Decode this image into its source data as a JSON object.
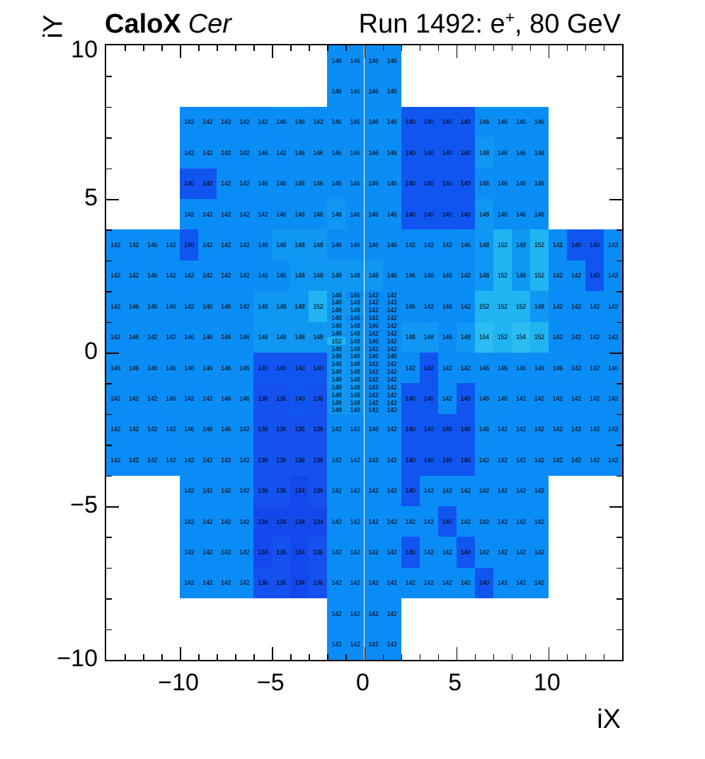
{
  "header": {
    "left_bold": "CaloX",
    "left_italic": "Cer",
    "right_prefix": "Run 1492: e",
    "right_sup": "+",
    "right_suffix": ", 80 GeV"
  },
  "chart_data": {
    "type": "heatmap",
    "title": "CaloX Cer — Run 1492: e+, 80 GeV",
    "xlabel": "iX",
    "ylabel": "iY",
    "x_range": [
      -14,
      14
    ],
    "y_range": [
      -10,
      10
    ],
    "x_ticks": [
      -10,
      -5,
      0,
      5,
      10
    ],
    "x_tick_labels": [
      "−10",
      "−5",
      "0",
      "5",
      "10"
    ],
    "y_ticks": [
      10,
      5,
      0,
      -5,
      -10
    ],
    "y_tick_labels": [
      "10",
      "5",
      "0",
      "−5",
      "−10"
    ],
    "grid": false,
    "z_min": 134,
    "z_max": 154,
    "color_map": {
      "134": "#1349ec",
      "136": "#1451ef",
      "140": "#1155f1",
      "142": "#0a8cf7",
      "146": "#0a8ef5",
      "148": "#0f97f3",
      "152": "#20b4f3",
      "154": "#2cbcf2"
    },
    "coarse_rows": [
      {
        "iy": 9,
        "segments": [
          {
            "x0": -2,
            "values": [
              146,
              146,
              146,
              146
            ]
          }
        ]
      },
      {
        "iy": 8,
        "segments": [
          {
            "x0": -2,
            "values": [
              146,
              146,
              146,
              146
            ]
          }
        ]
      },
      {
        "iy": 7,
        "segments": [
          {
            "x0": -10,
            "values": [
              142,
              142,
              142,
              142,
              142,
              146,
              146,
              142,
              146,
              146,
              146,
              146,
              140,
              140,
              140,
              140,
              146,
              146,
              146,
              146
            ]
          }
        ]
      },
      {
        "iy": 6,
        "segments": [
          {
            "x0": -10,
            "values": [
              142,
              142,
              142,
              142,
              146,
              142,
              146,
              146,
              146,
              146,
              146,
              146,
              140,
              140,
              140,
              140,
              148,
              146,
              146,
              146
            ]
          }
        ]
      },
      {
        "iy": 5,
        "segments": [
          {
            "x0": -10,
            "values": [
              140,
              140,
              142,
              142,
              146,
              146,
              146,
              146,
              146,
              146,
              146,
              146,
              140,
              140,
              140,
              140,
              146,
              146,
              146,
              146
            ]
          }
        ]
      },
      {
        "iy": 4,
        "segments": [
          {
            "x0": -10,
            "values": [
              142,
              142,
              142,
              142,
              142,
              146,
              146,
              146,
              148,
              146,
              146,
              146,
              140,
              140,
              140,
              140,
              148,
              146,
              146,
              146
            ]
          }
        ]
      },
      {
        "iy": 3,
        "segments": [
          {
            "x0": -14,
            "values": [
              142,
              142,
              146,
              142,
              140,
              142,
              142,
              142,
              146,
              148,
              148,
              148,
              146,
              146,
              146,
              146,
              142,
              142,
              142,
              146,
              148,
              152,
              148,
              152,
              142,
              140,
              140,
              142
            ]
          }
        ]
      },
      {
        "iy": 2,
        "segments": [
          {
            "x0": -14,
            "values": [
              142,
              142,
              146,
              142,
              142,
              142,
              142,
              142,
              146,
              146,
              148,
              148,
              148,
              148,
              148,
              146,
              146,
              146,
              146,
              142,
              148,
              152,
              148,
              152,
              142,
              142,
              140,
              142
            ]
          }
        ]
      },
      {
        "iy": 1,
        "segments": [
          {
            "x0": -14,
            "values": [
              142,
              146,
              146,
              146,
              142,
              146,
              146,
              142,
              148,
              148,
              148,
              152
            ]
          },
          {
            "x0": 2,
            "values": [
              146,
              142,
              146,
              142,
              152,
              152,
              152,
              148,
              142,
              142,
              142,
              142
            ]
          }
        ]
      },
      {
        "iy": 0,
        "segments": [
          {
            "x0": -14,
            "values": [
              142,
              146,
              142,
              142,
              146,
              146,
              146,
              146,
              148,
              148,
              148,
              148
            ]
          },
          {
            "x0": 2,
            "values": [
              148,
              148,
              146,
              148,
              154,
              152,
              154,
              152,
              142,
              142,
              142,
              142
            ]
          }
        ]
      },
      {
        "iy": -1,
        "segments": [
          {
            "x0": -14,
            "values": [
              146,
              146,
              146,
              146,
              146,
              146,
              146,
              146,
              140,
              140,
              140,
              140
            ]
          },
          {
            "x0": 2,
            "values": [
              142,
              140,
              142,
              142,
              146,
              146,
              146,
              146,
              146,
              142,
              142,
              146
            ]
          }
        ]
      },
      {
        "iy": -2,
        "segments": [
          {
            "x0": -14,
            "values": [
              142,
              142,
              142,
              146,
              142,
              142,
              146,
              146,
              136,
              136,
              140,
              136
            ]
          },
          {
            "x0": 2,
            "values": [
              140,
              140,
              142,
              140,
              146,
              146,
              142,
              142,
              142,
              142,
              142,
              142
            ]
          }
        ]
      },
      {
        "iy": -3,
        "segments": [
          {
            "x0": -14,
            "values": [
              142,
              142,
              142,
              142,
              146,
              146,
              146,
              142,
              136,
              136,
              136,
              136,
              142,
              142,
              146,
              142,
              140,
              140,
              140,
              140,
              146,
              142,
              142,
              142,
              142,
              142,
              142,
              142
            ]
          }
        ]
      },
      {
        "iy": -4,
        "segments": [
          {
            "x0": -14,
            "values": [
              142,
              142,
              142,
              142,
              142,
              142,
              142,
              142,
              136,
              136,
              136,
              136,
              142,
              142,
              142,
              142,
              140,
              140,
              140,
              140,
              142,
              142,
              142,
              142,
              142,
              142,
              142,
              142
            ]
          }
        ]
      },
      {
        "iy": -5,
        "segments": [
          {
            "x0": -10,
            "values": [
              142,
              142,
              142,
              142,
              136,
              136,
              134,
              136,
              142,
              142,
              142,
              142,
              140,
              142,
              142,
              142,
              142,
              142,
              142,
              142
            ]
          }
        ]
      },
      {
        "iy": -6,
        "segments": [
          {
            "x0": -10,
            "values": [
              142,
              142,
              142,
              142,
              134,
              134,
              134,
              134,
              142,
              142,
              142,
              142,
              142,
              142,
              140,
              142,
              142,
              142,
              142,
              142
            ]
          }
        ]
      },
      {
        "iy": -7,
        "segments": [
          {
            "x0": -10,
            "values": [
              142,
              142,
              142,
              142,
              134,
              136,
              134,
              136,
              142,
              142,
              142,
              142,
              140,
              142,
              142,
              140,
              142,
              142,
              142,
              142
            ]
          }
        ]
      },
      {
        "iy": -8,
        "segments": [
          {
            "x0": -10,
            "values": [
              142,
              142,
              142,
              142,
              136,
              136,
              134,
              136,
              142,
              142,
              142,
              142,
              142,
              142,
              142,
              142,
              140,
              142,
              142,
              142
            ]
          }
        ]
      },
      {
        "iy": -9,
        "segments": [
          {
            "x0": -2,
            "values": [
              142,
              142,
              142,
              142
            ]
          }
        ]
      },
      {
        "iy": -10,
        "segments": [
          {
            "x0": -2,
            "values": [
              142,
              142,
              142,
              142
            ]
          }
        ]
      }
    ],
    "fine_region": {
      "x0": -2,
      "y_top": 2,
      "col_width": 1,
      "row_height": 0.25,
      "rows": [
        [
          148,
          146,
          142,
          142
        ],
        [
          148,
          148,
          142,
          142
        ],
        [
          148,
          148,
          142,
          142
        ],
        [
          148,
          146,
          142,
          142
        ],
        [
          148,
          148,
          146,
          142
        ],
        [
          148,
          148,
          142,
          142
        ],
        [
          152,
          148,
          146,
          142
        ],
        [
          148,
          148,
          142,
          142
        ],
        [
          148,
          148,
          146,
          146
        ],
        [
          148,
          148,
          142,
          142
        ],
        [
          148,
          148,
          142,
          142
        ],
        [
          148,
          148,
          142,
          142
        ],
        [
          148,
          148,
          142,
          142
        ],
        [
          148,
          148,
          142,
          142
        ],
        [
          148,
          148,
          142,
          142
        ],
        [
          148,
          148,
          142,
          142
        ]
      ]
    }
  }
}
